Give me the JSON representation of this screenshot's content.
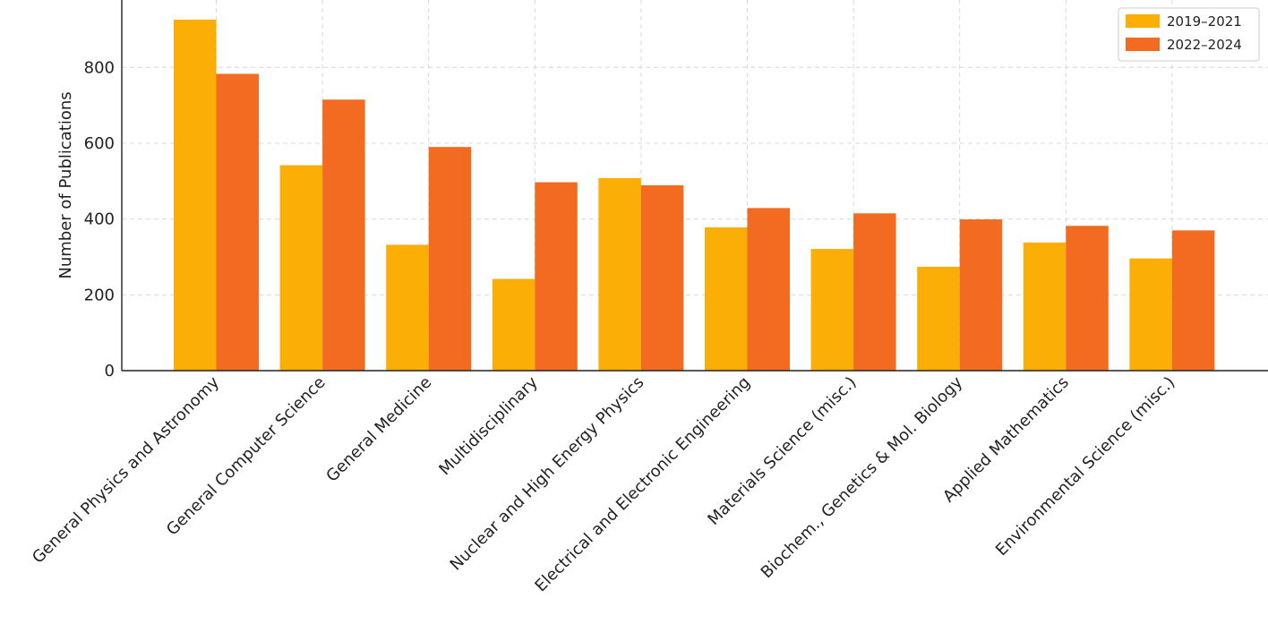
{
  "chart_data": {
    "type": "bar",
    "title": "",
    "xlabel": "",
    "ylabel": "Number of Publications",
    "ylim": [
      0,
      940
    ],
    "yticks": [
      0,
      200,
      400,
      600,
      800
    ],
    "grid": true,
    "legend_position": "top-right",
    "categories": [
      "General Physics and Astronomy",
      "General Computer Science",
      "General Medicine",
      "Multidisciplinary",
      "Nuclear and High Energy Physics",
      "Electrical and Electronic Engineering",
      "Materials Science (misc.)",
      "Biochem., Genetics & Mol. Biology",
      "Applied Mathematics",
      "Environmental Science (misc.)"
    ],
    "series": [
      {
        "name": "2019–2021",
        "color": "#FBAE06",
        "values": [
          926,
          542,
          332,
          242,
          508,
          378,
          321,
          274,
          338,
          296
        ]
      },
      {
        "name": "2022–2024",
        "color": "#F26B21",
        "values": [
          783,
          715,
          590,
          497,
          489,
          429,
          415,
          399,
          382,
          370
        ]
      }
    ]
  }
}
